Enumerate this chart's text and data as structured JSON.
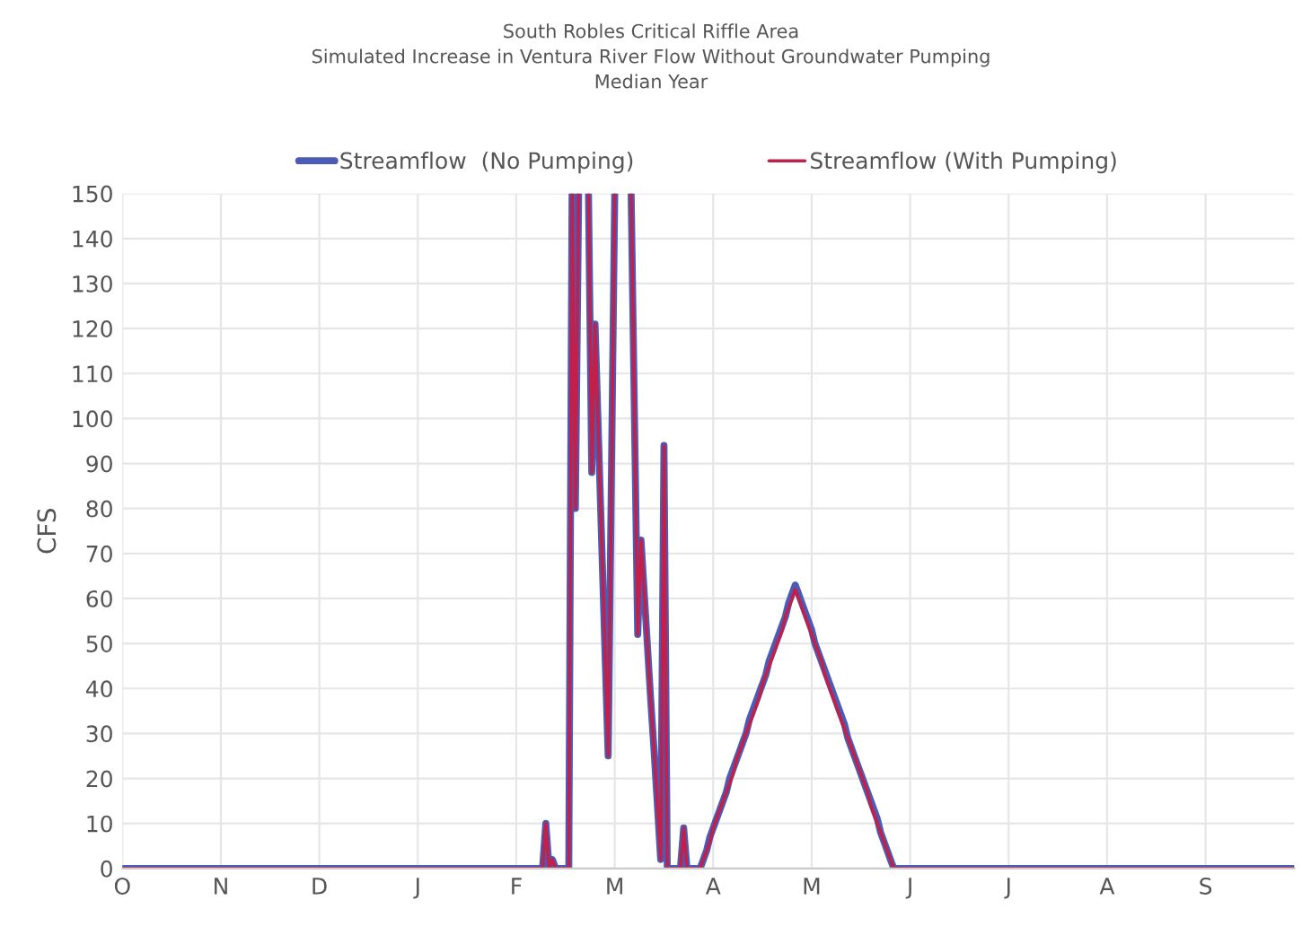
{
  "chart_data": {
    "type": "line",
    "title": "South Robles Critical Riffle Area\nSimulated Increase in Ventura River Flow Without Groundwater Pumping\nMedian Year",
    "ylabel": "CFS",
    "categories": [
      "O",
      null,
      null,
      null,
      null,
      null,
      null,
      null,
      null,
      null,
      null,
      null,
      null,
      null,
      null,
      null,
      null,
      null,
      null,
      null,
      null,
      null,
      null,
      null,
      null,
      null,
      null,
      null,
      null,
      null,
      "N",
      null,
      null,
      null,
      null,
      null,
      null,
      null,
      null,
      null,
      null,
      null,
      null,
      null,
      null,
      null,
      null,
      null,
      null,
      null,
      null,
      null,
      null,
      null,
      null,
      null,
      null,
      null,
      null,
      null,
      "D",
      null,
      null,
      null,
      null,
      null,
      null,
      null,
      null,
      null,
      null,
      null,
      null,
      null,
      null,
      null,
      null,
      null,
      null,
      null,
      null,
      null,
      null,
      null,
      null,
      null,
      null,
      null,
      null,
      null,
      "J",
      null,
      null,
      null,
      null,
      null,
      null,
      null,
      null,
      null,
      null,
      null,
      null,
      null,
      null,
      null,
      null,
      null,
      null,
      null,
      null,
      null,
      null,
      null,
      null,
      null,
      null,
      null,
      null,
      null,
      "F",
      null,
      null,
      null,
      null,
      null,
      null,
      null,
      null,
      null,
      null,
      null,
      null,
      null,
      null,
      null,
      null,
      null,
      null,
      null,
      null,
      null,
      null,
      null,
      null,
      null,
      null,
      null,
      null,
      null,
      "M",
      null,
      null,
      null,
      null,
      null,
      null,
      null,
      null,
      null,
      null,
      null,
      null,
      null,
      null,
      null,
      null,
      null,
      null,
      null,
      null,
      null,
      null,
      null,
      null,
      null,
      null,
      null,
      null,
      null,
      "A",
      null,
      null,
      null,
      null,
      null,
      null,
      null,
      null,
      null,
      null,
      null,
      null,
      null,
      null,
      null,
      null,
      null,
      null,
      null,
      null,
      null,
      null,
      null,
      null,
      null,
      null,
      null,
      null,
      null,
      "M",
      null,
      null,
      null,
      null,
      null,
      null,
      null,
      null,
      null,
      null,
      null,
      null,
      null,
      null,
      null,
      null,
      null,
      null,
      null,
      null,
      null,
      null,
      null,
      null,
      null,
      null,
      null,
      null,
      null,
      "J",
      null,
      null,
      null,
      null,
      null,
      null,
      null,
      null,
      null,
      null,
      null,
      null,
      null,
      null,
      null,
      null,
      null,
      null,
      null,
      null,
      null,
      null,
      null,
      null,
      null,
      null,
      null,
      null,
      null,
      "J",
      null,
      null,
      null,
      null,
      null,
      null,
      null,
      null,
      null,
      null,
      null,
      null,
      null,
      null,
      null,
      null,
      null,
      null,
      null,
      null,
      null,
      null,
      null,
      null,
      null,
      null,
      null,
      null,
      null,
      "A",
      null,
      null,
      null,
      null,
      null,
      null,
      null,
      null,
      null,
      null,
      null,
      null,
      null,
      null,
      null,
      null,
      null,
      null,
      null,
      null,
      null,
      null,
      null,
      null,
      null,
      null,
      null,
      null,
      null,
      "S",
      null,
      null,
      null,
      null,
      null,
      null,
      null,
      null,
      null,
      null,
      null,
      null,
      null,
      null,
      null,
      null,
      null,
      null,
      null,
      null,
      null,
      null,
      null,
      null,
      null,
      null,
      null
    ],
    "series": [
      {
        "name": "Streamflow  (No Pumping)",
        "color": "#4a5cb5",
        "values": [
          0,
          0,
          0,
          0,
          0,
          0,
          0,
          0,
          0,
          0,
          0,
          0,
          0,
          0,
          0,
          0,
          0,
          0,
          0,
          0,
          0,
          0,
          0,
          0,
          0,
          0,
          0,
          0,
          0,
          0,
          0,
          0,
          0,
          0,
          0,
          0,
          0,
          0,
          0,
          0,
          0,
          0,
          0,
          0,
          0,
          0,
          0,
          0,
          0,
          0,
          0,
          0,
          0,
          0,
          0,
          0,
          0,
          0,
          0,
          0,
          0,
          0,
          0,
          0,
          0,
          0,
          0,
          0,
          0,
          0,
          0,
          0,
          0,
          0,
          0,
          0,
          0,
          0,
          0,
          0,
          0,
          0,
          0,
          0,
          0,
          0,
          0,
          0,
          0,
          0,
          0,
          0,
          0,
          0,
          0,
          0,
          0,
          0,
          0,
          0,
          0,
          0,
          0,
          0,
          0,
          0,
          0,
          0,
          0,
          0,
          0,
          0,
          0,
          0,
          0,
          0,
          0,
          0,
          0,
          0,
          0,
          0,
          0,
          0,
          0,
          0,
          0,
          0,
          0,
          10,
          0,
          2,
          0,
          0,
          0,
          0,
          0,
          150,
          80,
          150,
          null,
          null,
          150,
          88,
          121,
          97,
          73,
          49,
          25,
          88,
          150,
          null,
          null,
          null,
          null,
          150,
          101,
          52,
          73,
          61,
          49,
          37,
          26,
          14,
          2,
          94,
          0,
          0,
          0,
          0,
          0,
          9,
          0,
          0,
          0,
          0,
          0,
          2,
          4,
          7,
          9,
          11,
          13,
          15,
          17,
          20,
          22,
          24,
          26,
          28,
          30,
          33,
          35,
          37,
          39,
          41,
          43,
          46,
          48,
          50,
          52,
          54,
          56,
          59,
          61,
          63,
          61,
          59,
          57,
          55,
          53,
          50,
          48,
          46,
          44,
          42,
          40,
          38,
          36,
          34,
          32,
          29,
          27,
          25,
          23,
          21,
          19,
          17,
          15,
          13,
          11,
          8,
          6,
          4,
          2,
          0,
          0,
          0,
          0,
          0,
          0,
          0,
          0,
          0,
          0,
          0,
          0,
          0,
          0,
          0,
          0,
          0,
          0,
          0,
          0,
          0,
          0,
          0,
          0,
          0,
          0,
          0,
          0,
          0,
          0,
          0,
          0,
          0,
          0,
          0,
          0,
          0,
          0,
          0,
          0,
          0,
          0,
          0,
          0,
          0,
          0,
          0,
          0,
          0,
          0,
          0,
          0,
          0,
          0,
          0,
          0,
          0,
          0,
          0,
          0,
          0,
          0,
          0,
          0,
          0,
          0,
          0,
          0,
          0,
          0,
          0,
          0,
          0,
          0,
          0,
          0,
          0,
          0,
          0,
          0,
          0,
          0,
          0,
          0,
          0,
          0,
          0,
          0,
          0,
          0,
          0,
          0,
          0,
          0,
          0,
          0,
          0,
          0,
          0,
          0,
          0,
          0,
          0,
          0,
          0,
          0,
          0,
          0,
          0,
          0,
          0,
          0,
          0,
          0,
          0,
          0,
          0,
          0,
          0,
          0,
          0,
          0,
          0
        ]
      },
      {
        "name": "Streamflow (With Pumping)",
        "color": "#c0204a",
        "values": [
          0,
          0,
          0,
          0,
          0,
          0,
          0,
          0,
          0,
          0,
          0,
          0,
          0,
          0,
          0,
          0,
          0,
          0,
          0,
          0,
          0,
          0,
          0,
          0,
          0,
          0,
          0,
          0,
          0,
          0,
          0,
          0,
          0,
          0,
          0,
          0,
          0,
          0,
          0,
          0,
          0,
          0,
          0,
          0,
          0,
          0,
          0,
          0,
          0,
          0,
          0,
          0,
          0,
          0,
          0,
          0,
          0,
          0,
          0,
          0,
          0,
          0,
          0,
          0,
          0,
          0,
          0,
          0,
          0,
          0,
          0,
          0,
          0,
          0,
          0,
          0,
          0,
          0,
          0,
          0,
          0,
          0,
          0,
          0,
          0,
          0,
          0,
          0,
          0,
          0,
          0,
          0,
          0,
          0,
          0,
          0,
          0,
          0,
          0,
          0,
          0,
          0,
          0,
          0,
          0,
          0,
          0,
          0,
          0,
          0,
          0,
          0,
          0,
          0,
          0,
          0,
          0,
          0,
          0,
          0,
          0,
          0,
          0,
          0,
          0,
          0,
          0,
          0,
          0,
          10,
          0,
          2,
          0,
          0,
          0,
          0,
          0,
          150,
          80,
          150,
          null,
          null,
          150,
          88,
          121,
          97,
          73,
          49,
          25,
          88,
          150,
          null,
          null,
          null,
          null,
          150,
          101,
          52,
          73,
          61,
          49,
          37,
          26,
          14,
          2,
          94,
          0,
          0,
          0,
          0,
          0,
          9,
          0,
          0,
          0,
          0,
          0,
          2,
          4,
          6,
          9,
          11,
          13,
          15,
          17,
          19,
          21,
          24,
          26,
          28,
          30,
          32,
          34,
          36,
          38,
          41,
          43,
          45,
          47,
          49,
          51,
          53,
          56,
          58,
          60,
          62,
          60,
          58,
          56,
          54,
          52,
          50,
          48,
          46,
          43,
          41,
          39,
          37,
          35,
          33,
          31,
          29,
          27,
          25,
          23,
          21,
          19,
          17,
          14,
          12,
          10,
          8,
          6,
          4,
          2,
          0,
          0,
          0,
          0,
          0,
          0,
          0,
          0,
          0,
          0,
          0,
          0,
          0,
          0,
          0,
          0,
          0,
          0,
          0,
          0,
          0,
          0,
          0,
          0,
          0,
          0,
          0,
          0,
          0,
          0,
          0,
          0,
          0,
          0,
          0,
          0,
          0,
          0,
          0,
          0,
          0,
          0,
          0,
          0,
          0,
          0,
          0,
          0,
          0,
          0,
          0,
          0,
          0,
          0,
          0,
          0,
          0,
          0,
          0,
          0,
          0,
          0,
          0,
          0,
          0,
          0,
          0,
          0,
          0,
          0,
          0,
          0,
          0,
          0,
          0,
          0,
          0,
          0,
          0,
          0,
          0,
          0,
          0,
          0,
          0,
          0,
          0,
          0,
          0,
          0,
          0,
          0,
          0,
          0,
          0,
          0,
          0,
          0,
          0,
          0,
          0,
          0,
          0,
          0,
          0,
          0,
          0,
          0,
          0,
          0,
          0,
          0,
          0,
          0,
          0,
          0,
          0,
          0,
          0,
          0,
          0,
          0,
          0
        ]
      }
    ],
    "ylim": [
      0,
      150
    ],
    "yticks": [
      0,
      10,
      20,
      30,
      40,
      50,
      60,
      70,
      80,
      90,
      100,
      110,
      120,
      130,
      140,
      150
    ],
    "grid": true,
    "legend": "top",
    "marker": "none",
    "line_style": "solid"
  }
}
